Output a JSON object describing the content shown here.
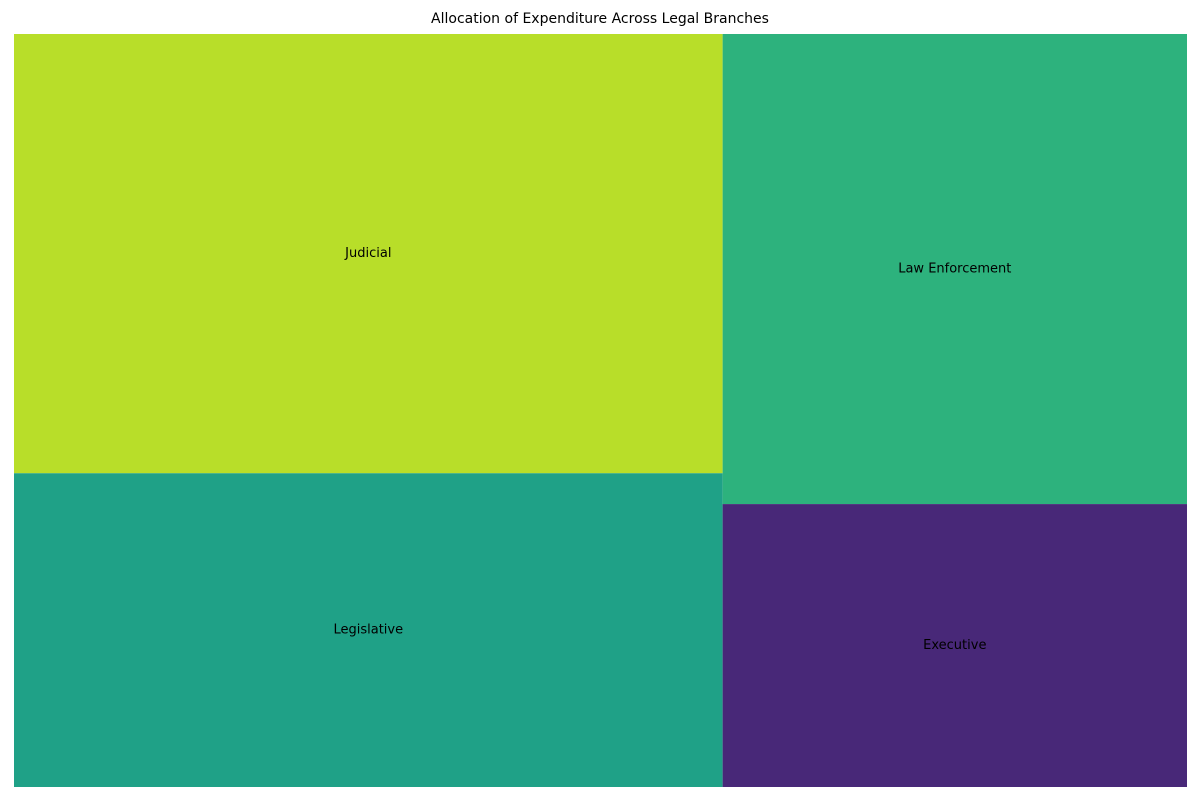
{
  "chart_data": {
    "type": "treemap",
    "title": "Allocation of Expenditure Across Legal Branches",
    "items": [
      {
        "label": "Judicial",
        "value": 30.8,
        "color": "#b8de29"
      },
      {
        "label": "Legislative",
        "value": 22.0,
        "color": "#1fa187"
      },
      {
        "label": "Law Enforcement",
        "value": 21.6,
        "color": "#2db27d"
      },
      {
        "label": "Executive",
        "value": 13.0,
        "color": "#482878"
      }
    ],
    "values_note_units": "percent share of total"
  }
}
